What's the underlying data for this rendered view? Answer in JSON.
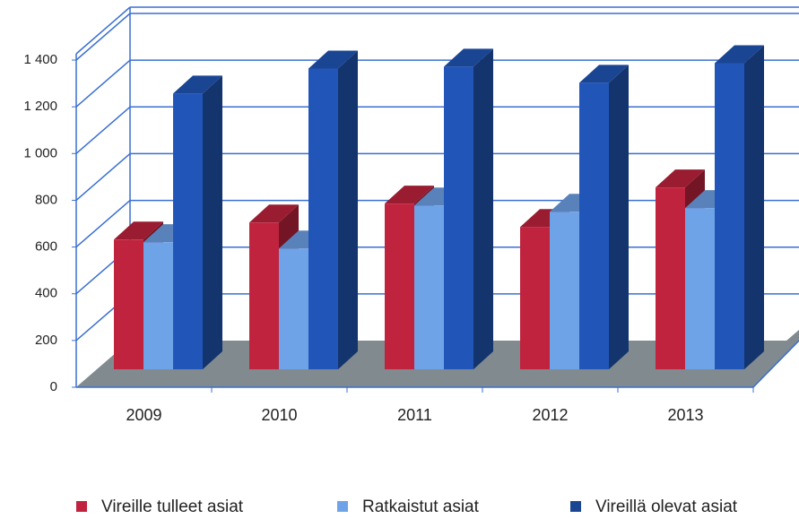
{
  "chart_data": {
    "type": "bar3d",
    "categories": [
      "2009",
      "2010",
      "2011",
      "2012",
      "2013"
    ],
    "series": [
      {
        "name": "Vireille tulleet asiat",
        "color": "#c0233d",
        "values": [
          555,
          628,
          709,
          609,
          778
        ]
      },
      {
        "name": "Ratkaistut asiat",
        "color": "#6fa3e8",
        "values": [
          544,
          517,
          701,
          674,
          690
        ]
      },
      {
        "name": "Vireillä olevat asiat",
        "color": "#2156b8",
        "values": [
          1180,
          1287,
          1295,
          1226,
          1310
        ]
      }
    ],
    "ylim": [
      0,
      1400
    ],
    "yticks": [
      0,
      200,
      400,
      600,
      800,
      {
        "value": 1000,
        "label": "1 000"
      },
      {
        "value": 1200,
        "label": "1 200"
      },
      {
        "value": 1400,
        "label": "1 400"
      }
    ],
    "grid": true,
    "legend": "bottom"
  }
}
